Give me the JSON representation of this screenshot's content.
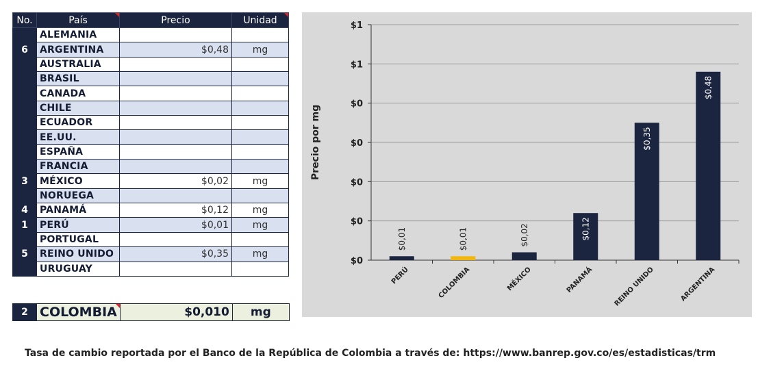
{
  "table": {
    "headers": {
      "no": "No.",
      "pais": "País",
      "precio": "Precio",
      "unidad": "Unidad"
    },
    "rows": [
      {
        "no": "",
        "pais": "ALEMANIA",
        "precio": "",
        "unidad": ""
      },
      {
        "no": "6",
        "pais": "ARGENTINA",
        "precio": "$0,48",
        "unidad": "mg"
      },
      {
        "no": "",
        "pais": "AUSTRALIA",
        "precio": "",
        "unidad": ""
      },
      {
        "no": "",
        "pais": "BRASIL",
        "precio": "",
        "unidad": ""
      },
      {
        "no": "",
        "pais": "CANADA",
        "precio": "",
        "unidad": ""
      },
      {
        "no": "",
        "pais": "CHILE",
        "precio": "",
        "unidad": ""
      },
      {
        "no": "",
        "pais": "ECUADOR",
        "precio": "",
        "unidad": ""
      },
      {
        "no": "",
        "pais": "EE.UU.",
        "precio": "",
        "unidad": ""
      },
      {
        "no": "",
        "pais": "ESPAÑA",
        "precio": "",
        "unidad": ""
      },
      {
        "no": "",
        "pais": "FRANCIA",
        "precio": "",
        "unidad": ""
      },
      {
        "no": "3",
        "pais": "MÉXICO",
        "precio": "$0,02",
        "unidad": "mg"
      },
      {
        "no": "",
        "pais": "NORUEGA",
        "precio": "",
        "unidad": ""
      },
      {
        "no": "4",
        "pais": "PANAMÁ",
        "precio": "$0,12",
        "unidad": "mg"
      },
      {
        "no": "1",
        "pais": "PERÚ",
        "precio": "$0,01",
        "unidad": "mg"
      },
      {
        "no": "",
        "pais": "PORTUGAL",
        "precio": "",
        "unidad": ""
      },
      {
        "no": "5",
        "pais": "REINO UNIDO",
        "precio": "$0,35",
        "unidad": "mg"
      },
      {
        "no": "",
        "pais": "URUGUAY",
        "precio": "",
        "unidad": ""
      }
    ],
    "highlight": {
      "no": "2",
      "pais": "COLOMBIA",
      "precio": "$0,010",
      "unidad": "mg"
    }
  },
  "footnote": "Tasa de cambio reportada por el Banco de la República de Colombia a través de: https://www.banrep.gov.co/es/estadisticas/trm",
  "colors": {
    "navy": "#1c2540",
    "highlight": "#f2b70f",
    "panel": "#d9d9d9"
  },
  "chart_data": {
    "type": "bar",
    "categories": [
      "PERÚ",
      "COLOMBIA",
      "MÉXICO",
      "PANAMÁ",
      "REINO UNIDO",
      "ARGENTINA"
    ],
    "values": [
      0.01,
      0.01,
      0.02,
      0.12,
      0.35,
      0.48
    ],
    "value_labels": [
      "$0,01",
      "$0,01",
      "$0,02",
      "$0,12",
      "$0,35",
      "$0,48"
    ],
    "highlight_category": "COLOMBIA",
    "ylabel": "Precio por mg",
    "ylim": [
      0,
      0.6
    ],
    "y_ticks": [
      0,
      0.1,
      0.2,
      0.3,
      0.4,
      0.5,
      0.6
    ],
    "y_tick_labels": [
      "$0",
      "$0",
      "$0",
      "$0",
      "$0",
      "$1",
      "$1"
    ],
    "grid": true
  }
}
